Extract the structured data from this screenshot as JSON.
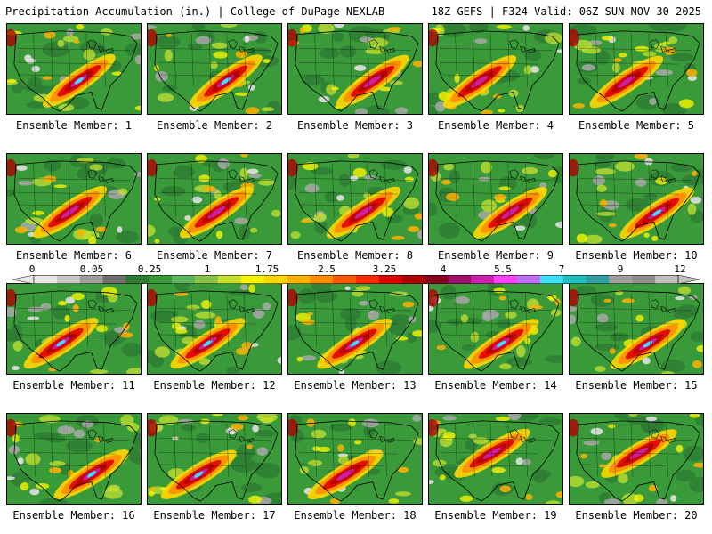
{
  "header": {
    "title": "Precipitation Accumulation (in.) | College of DuPage NEXLAB",
    "run_info": "18Z GEFS | F324 Valid: 06Z SUN NOV 30 2025"
  },
  "members": [
    "Ensemble Member: 1",
    "Ensemble Member: 2",
    "Ensemble Member: 3",
    "Ensemble Member: 4",
    "Ensemble Member: 5",
    "Ensemble Member: 6",
    "Ensemble Member: 7",
    "Ensemble Member: 8",
    "Ensemble Member: 9",
    "Ensemble Member: 10",
    "Ensemble Member: 11",
    "Ensemble Member: 12",
    "Ensemble Member: 13",
    "Ensemble Member: 14",
    "Ensemble Member: 15",
    "Ensemble Member: 16",
    "Ensemble Member: 17",
    "Ensemble Member: 18",
    "Ensemble Member: 19",
    "Ensemble Member: 20"
  ],
  "colorbar": {
    "labels": [
      "0",
      "0.05",
      "0.25",
      "1",
      "1.75",
      "2.5",
      "3.25",
      "4",
      "5.5",
      "7",
      "9",
      "12"
    ],
    "colors": [
      "#e6e6e6",
      "#c8c8c8",
      "#a0a0a0",
      "#707070",
      "#2e7d32",
      "#3a9a3a",
      "#5cb85c",
      "#8bc34a",
      "#c6e030",
      "#f5f500",
      "#ffd700",
      "#ffb000",
      "#ff8c00",
      "#ff5a00",
      "#ff2a00",
      "#e00000",
      "#b00000",
      "#880020",
      "#a0106a",
      "#d020b0",
      "#ff40ff",
      "#c070ff",
      "#40e0ff",
      "#20c0c0",
      "#30a0a0",
      "#a0a0a0",
      "#909090",
      "#c0c0c0"
    ]
  }
}
